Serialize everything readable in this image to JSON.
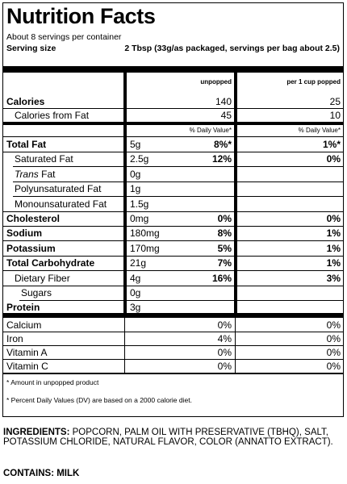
{
  "title": "Nutrition Facts",
  "servings_per_container": "About 8 servings per container",
  "serving_size_label": "Serving size",
  "serving_size_value": "2 Tbsp (33g/as packaged, servings per bag about 2.5)",
  "columns": {
    "unpopped": "unpopped",
    "popped": "per 1 cup popped",
    "dv_label": "% Daily Value*"
  },
  "calories": {
    "label": "Calories",
    "unpopped": "140",
    "popped": "25"
  },
  "calories_from_fat": {
    "label": "Calories from Fat",
    "unpopped": "45",
    "popped": "10"
  },
  "nutrients": [
    {
      "label": "Total Fat",
      "amount": "5g",
      "dv": "8%*",
      "popped_dv": "1%*"
    },
    {
      "label": "Saturated Fat",
      "amount": "2.5g",
      "dv": "12%",
      "popped_dv": "0%"
    },
    {
      "label_italic": "Trans",
      "label": " Fat",
      "amount": "0g",
      "dv": "",
      "popped_dv": ""
    },
    {
      "label": "Polyunsaturated Fat",
      "amount": "1g",
      "dv": "",
      "popped_dv": ""
    },
    {
      "label": "Monounsaturated Fat",
      "amount": "1.5g",
      "dv": "",
      "popped_dv": ""
    },
    {
      "label": "Cholesterol",
      "amount": "0mg",
      "dv": "0%",
      "popped_dv": "0%"
    },
    {
      "label": "Sodium",
      "amount": "180mg",
      "dv": "8%",
      "popped_dv": "1%"
    },
    {
      "label": "Potassium",
      "amount": "170mg",
      "dv": "5%",
      "popped_dv": "1%"
    },
    {
      "label": "Total Carbohydrate",
      "amount": "21g",
      "dv": "7%",
      "popped_dv": "1%"
    },
    {
      "label": "Dietary Fiber",
      "amount": "4g",
      "dv": "16%",
      "popped_dv": "3%"
    },
    {
      "label": "Sugars",
      "amount": "0g",
      "dv": "",
      "popped_dv": ""
    },
    {
      "label": "Protein",
      "amount": "3g",
      "dv": "",
      "popped_dv": ""
    }
  ],
  "vitamins": [
    {
      "label": "Calcium",
      "unpopped": "0%",
      "popped": "0%"
    },
    {
      "label": "Iron",
      "unpopped": "4%",
      "popped": "0%"
    },
    {
      "label": "Vitamin A",
      "unpopped": "0%",
      "popped": "0%"
    },
    {
      "label": "Vitamin C",
      "unpopped": "0%",
      "popped": "0%"
    }
  ],
  "footnotes": {
    "amount_note": "* Amount in unpopped product",
    "dv_note": "* Percent Daily Values (DV) are based on a 2000 calorie diet."
  },
  "ingredients": {
    "heading": "INGREDIENTS:",
    "text": " POPCORN, PALM OIL WITH PRESERVATIVE (TBHQ), SALT, POTASSIUM CHLORIDE, NATURAL FLAVOR, COLOR (ANNATTO EXTRACT)."
  },
  "contains": "CONTAINS: MILK"
}
